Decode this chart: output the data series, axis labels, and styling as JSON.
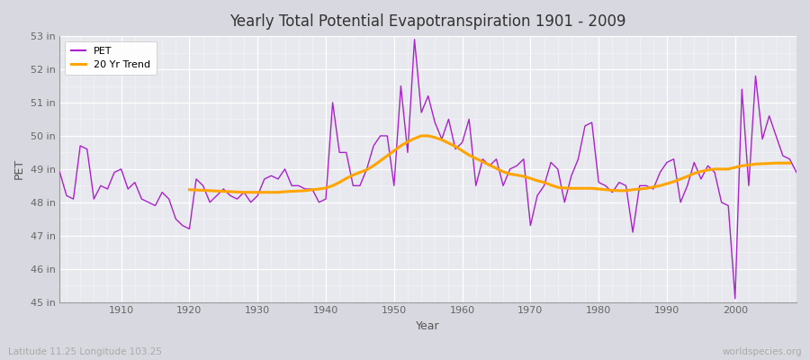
{
  "title": "Yearly Total Potential Evapotranspiration 1901 - 2009",
  "xlabel": "Year",
  "ylabel": "PET",
  "bottom_left": "Latitude 11.25 Longitude 103.25",
  "bottom_right": "worldspecies.org",
  "ylim": [
    45,
    53
  ],
  "xlim": [
    1901,
    2009
  ],
  "pet_color": "#aa22cc",
  "trend_color": "#FFA500",
  "fig_bg_color": "#d8d8e0",
  "plot_bg_color": "#e8e8ef",
  "years": [
    1901,
    1902,
    1903,
    1904,
    1905,
    1906,
    1907,
    1908,
    1909,
    1910,
    1911,
    1912,
    1913,
    1914,
    1915,
    1916,
    1917,
    1918,
    1919,
    1920,
    1921,
    1922,
    1923,
    1924,
    1925,
    1926,
    1927,
    1928,
    1929,
    1930,
    1931,
    1932,
    1933,
    1934,
    1935,
    1936,
    1937,
    1938,
    1939,
    1940,
    1941,
    1942,
    1943,
    1944,
    1945,
    1946,
    1947,
    1948,
    1949,
    1950,
    1951,
    1952,
    1953,
    1954,
    1955,
    1956,
    1957,
    1958,
    1959,
    1960,
    1961,
    1962,
    1963,
    1964,
    1965,
    1966,
    1967,
    1968,
    1969,
    1970,
    1971,
    1972,
    1973,
    1974,
    1975,
    1976,
    1977,
    1978,
    1979,
    1980,
    1981,
    1982,
    1983,
    1984,
    1985,
    1986,
    1987,
    1988,
    1989,
    1990,
    1991,
    1992,
    1993,
    1994,
    1995,
    1996,
    1997,
    1998,
    1999,
    2000,
    2001,
    2002,
    2003,
    2004,
    2005,
    2006,
    2007,
    2008,
    2009
  ],
  "pet": [
    48.9,
    48.2,
    48.1,
    49.7,
    49.6,
    48.1,
    48.5,
    48.4,
    48.9,
    49.0,
    48.4,
    48.6,
    48.1,
    48.0,
    47.9,
    48.3,
    48.1,
    47.5,
    47.3,
    47.2,
    48.7,
    48.5,
    48.0,
    48.2,
    48.4,
    48.2,
    48.1,
    48.3,
    48.0,
    48.2,
    48.7,
    48.8,
    48.7,
    49.0,
    48.5,
    48.5,
    48.4,
    48.4,
    48.0,
    48.1,
    51.0,
    49.5,
    49.5,
    48.5,
    48.5,
    49.0,
    49.7,
    50.0,
    50.0,
    48.5,
    51.5,
    49.5,
    52.9,
    50.7,
    51.2,
    50.4,
    49.9,
    50.5,
    49.6,
    49.8,
    50.5,
    48.5,
    49.3,
    49.1,
    49.3,
    48.5,
    49.0,
    49.1,
    49.3,
    47.3,
    48.2,
    48.5,
    49.2,
    49.0,
    48.0,
    48.8,
    49.3,
    50.3,
    50.4,
    48.6,
    48.5,
    48.3,
    48.6,
    48.5,
    47.1,
    48.5,
    48.5,
    48.4,
    48.9,
    49.2,
    49.3,
    48.0,
    48.5,
    49.2,
    48.7,
    49.1,
    48.9,
    48.0,
    47.9,
    45.1,
    51.4,
    48.5,
    51.8,
    49.9,
    50.6,
    50.0,
    49.4,
    49.3,
    48.9
  ],
  "trend": [
    null,
    null,
    null,
    null,
    null,
    null,
    null,
    null,
    null,
    null,
    null,
    null,
    null,
    null,
    null,
    null,
    null,
    null,
    null,
    48.38,
    48.37,
    48.36,
    48.35,
    48.34,
    48.33,
    48.32,
    48.31,
    48.3,
    48.3,
    48.3,
    48.3,
    48.3,
    48.3,
    48.32,
    48.33,
    48.34,
    48.35,
    48.38,
    48.4,
    48.43,
    48.5,
    48.6,
    48.72,
    48.82,
    48.9,
    48.98,
    49.1,
    49.25,
    49.4,
    49.55,
    49.7,
    49.82,
    49.92,
    50.0,
    50.0,
    49.95,
    49.88,
    49.78,
    49.68,
    49.55,
    49.42,
    49.32,
    49.22,
    49.12,
    49.02,
    48.92,
    48.85,
    48.82,
    48.78,
    48.72,
    48.65,
    48.6,
    48.52,
    48.45,
    48.43,
    48.42,
    48.42,
    48.42,
    48.42,
    48.4,
    48.38,
    48.36,
    48.35,
    48.35,
    48.38,
    48.4,
    48.42,
    48.46,
    48.5,
    48.56,
    48.62,
    48.7,
    48.78,
    48.87,
    48.93,
    48.97,
    49.0,
    49.0,
    49.0,
    49.05,
    49.1,
    49.12,
    49.15,
    49.16,
    49.17,
    49.18,
    49.18,
    49.18
  ]
}
